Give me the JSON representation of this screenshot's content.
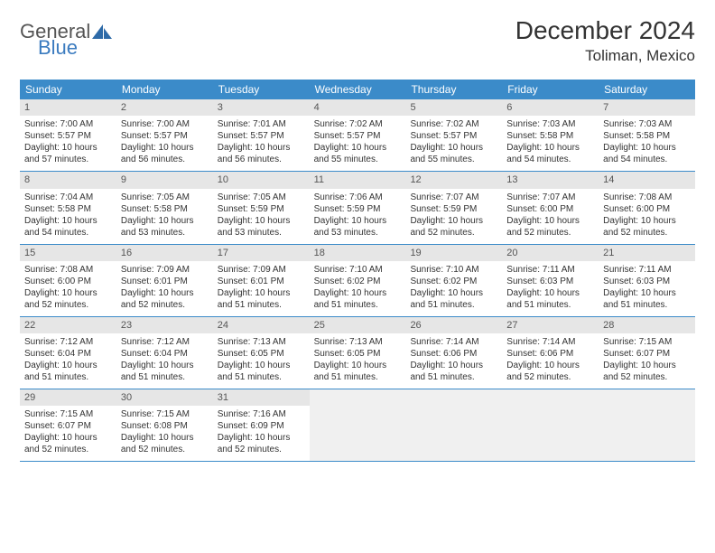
{
  "logo": {
    "general": "General",
    "blue": "Blue",
    "icon_color": "#2d6aa8"
  },
  "title": "December 2024",
  "location": "Toliman, Mexico",
  "day_headers": [
    "Sunday",
    "Monday",
    "Tuesday",
    "Wednesday",
    "Thursday",
    "Friday",
    "Saturday"
  ],
  "header_bg": "#3b8bc9",
  "header_text": "#ffffff",
  "daynum_bg": "#e6e6e6",
  "border_color": "#3b8bc9",
  "text_color": "#333333",
  "font_family": "Arial",
  "weeks": [
    [
      {
        "n": "1",
        "sunrise": "Sunrise: 7:00 AM",
        "sunset": "Sunset: 5:57 PM",
        "daylight": "Daylight: 10 hours and 57 minutes."
      },
      {
        "n": "2",
        "sunrise": "Sunrise: 7:00 AM",
        "sunset": "Sunset: 5:57 PM",
        "daylight": "Daylight: 10 hours and 56 minutes."
      },
      {
        "n": "3",
        "sunrise": "Sunrise: 7:01 AM",
        "sunset": "Sunset: 5:57 PM",
        "daylight": "Daylight: 10 hours and 56 minutes."
      },
      {
        "n": "4",
        "sunrise": "Sunrise: 7:02 AM",
        "sunset": "Sunset: 5:57 PM",
        "daylight": "Daylight: 10 hours and 55 minutes."
      },
      {
        "n": "5",
        "sunrise": "Sunrise: 7:02 AM",
        "sunset": "Sunset: 5:57 PM",
        "daylight": "Daylight: 10 hours and 55 minutes."
      },
      {
        "n": "6",
        "sunrise": "Sunrise: 7:03 AM",
        "sunset": "Sunset: 5:58 PM",
        "daylight": "Daylight: 10 hours and 54 minutes."
      },
      {
        "n": "7",
        "sunrise": "Sunrise: 7:03 AM",
        "sunset": "Sunset: 5:58 PM",
        "daylight": "Daylight: 10 hours and 54 minutes."
      }
    ],
    [
      {
        "n": "8",
        "sunrise": "Sunrise: 7:04 AM",
        "sunset": "Sunset: 5:58 PM",
        "daylight": "Daylight: 10 hours and 54 minutes."
      },
      {
        "n": "9",
        "sunrise": "Sunrise: 7:05 AM",
        "sunset": "Sunset: 5:58 PM",
        "daylight": "Daylight: 10 hours and 53 minutes."
      },
      {
        "n": "10",
        "sunrise": "Sunrise: 7:05 AM",
        "sunset": "Sunset: 5:59 PM",
        "daylight": "Daylight: 10 hours and 53 minutes."
      },
      {
        "n": "11",
        "sunrise": "Sunrise: 7:06 AM",
        "sunset": "Sunset: 5:59 PM",
        "daylight": "Daylight: 10 hours and 53 minutes."
      },
      {
        "n": "12",
        "sunrise": "Sunrise: 7:07 AM",
        "sunset": "Sunset: 5:59 PM",
        "daylight": "Daylight: 10 hours and 52 minutes."
      },
      {
        "n": "13",
        "sunrise": "Sunrise: 7:07 AM",
        "sunset": "Sunset: 6:00 PM",
        "daylight": "Daylight: 10 hours and 52 minutes."
      },
      {
        "n": "14",
        "sunrise": "Sunrise: 7:08 AM",
        "sunset": "Sunset: 6:00 PM",
        "daylight": "Daylight: 10 hours and 52 minutes."
      }
    ],
    [
      {
        "n": "15",
        "sunrise": "Sunrise: 7:08 AM",
        "sunset": "Sunset: 6:00 PM",
        "daylight": "Daylight: 10 hours and 52 minutes."
      },
      {
        "n": "16",
        "sunrise": "Sunrise: 7:09 AM",
        "sunset": "Sunset: 6:01 PM",
        "daylight": "Daylight: 10 hours and 52 minutes."
      },
      {
        "n": "17",
        "sunrise": "Sunrise: 7:09 AM",
        "sunset": "Sunset: 6:01 PM",
        "daylight": "Daylight: 10 hours and 51 minutes."
      },
      {
        "n": "18",
        "sunrise": "Sunrise: 7:10 AM",
        "sunset": "Sunset: 6:02 PM",
        "daylight": "Daylight: 10 hours and 51 minutes."
      },
      {
        "n": "19",
        "sunrise": "Sunrise: 7:10 AM",
        "sunset": "Sunset: 6:02 PM",
        "daylight": "Daylight: 10 hours and 51 minutes."
      },
      {
        "n": "20",
        "sunrise": "Sunrise: 7:11 AM",
        "sunset": "Sunset: 6:03 PM",
        "daylight": "Daylight: 10 hours and 51 minutes."
      },
      {
        "n": "21",
        "sunrise": "Sunrise: 7:11 AM",
        "sunset": "Sunset: 6:03 PM",
        "daylight": "Daylight: 10 hours and 51 minutes."
      }
    ],
    [
      {
        "n": "22",
        "sunrise": "Sunrise: 7:12 AM",
        "sunset": "Sunset: 6:04 PM",
        "daylight": "Daylight: 10 hours and 51 minutes."
      },
      {
        "n": "23",
        "sunrise": "Sunrise: 7:12 AM",
        "sunset": "Sunset: 6:04 PM",
        "daylight": "Daylight: 10 hours and 51 minutes."
      },
      {
        "n": "24",
        "sunrise": "Sunrise: 7:13 AM",
        "sunset": "Sunset: 6:05 PM",
        "daylight": "Daylight: 10 hours and 51 minutes."
      },
      {
        "n": "25",
        "sunrise": "Sunrise: 7:13 AM",
        "sunset": "Sunset: 6:05 PM",
        "daylight": "Daylight: 10 hours and 51 minutes."
      },
      {
        "n": "26",
        "sunrise": "Sunrise: 7:14 AM",
        "sunset": "Sunset: 6:06 PM",
        "daylight": "Daylight: 10 hours and 51 minutes."
      },
      {
        "n": "27",
        "sunrise": "Sunrise: 7:14 AM",
        "sunset": "Sunset: 6:06 PM",
        "daylight": "Daylight: 10 hours and 52 minutes."
      },
      {
        "n": "28",
        "sunrise": "Sunrise: 7:15 AM",
        "sunset": "Sunset: 6:07 PM",
        "daylight": "Daylight: 10 hours and 52 minutes."
      }
    ],
    [
      {
        "n": "29",
        "sunrise": "Sunrise: 7:15 AM",
        "sunset": "Sunset: 6:07 PM",
        "daylight": "Daylight: 10 hours and 52 minutes."
      },
      {
        "n": "30",
        "sunrise": "Sunrise: 7:15 AM",
        "sunset": "Sunset: 6:08 PM",
        "daylight": "Daylight: 10 hours and 52 minutes."
      },
      {
        "n": "31",
        "sunrise": "Sunrise: 7:16 AM",
        "sunset": "Sunset: 6:09 PM",
        "daylight": "Daylight: 10 hours and 52 minutes."
      },
      null,
      null,
      null,
      null
    ]
  ]
}
